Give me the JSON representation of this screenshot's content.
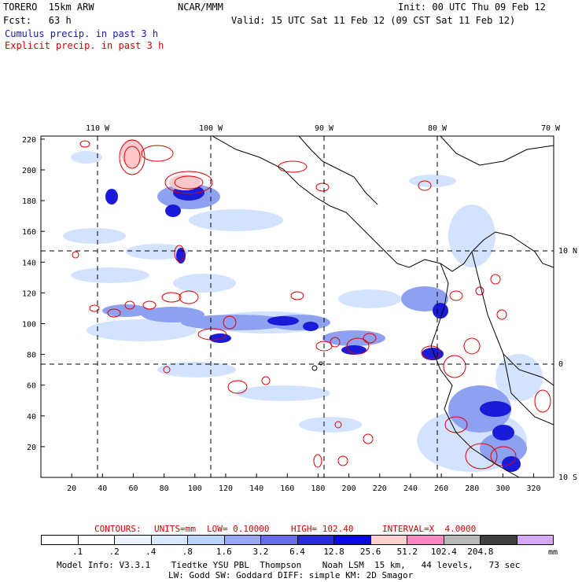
{
  "header": {
    "model": "TORERO  15km ARW",
    "org": "NCAR/MMM",
    "init": "Init: 00 UTC Thu 09 Feb 12",
    "fcst": "Fcst:   63 h",
    "valid": "Valid: 15 UTC Sat 11 Feb 12 (09 CST Sat 11 Feb 12)",
    "line_cumulus": "Cumulus precip. in past 3 h",
    "line_explicit": "Explicit precip. in past 3 h"
  },
  "map": {
    "lon_labels": [
      "110 W",
      "100 W",
      "90 W",
      "80 W",
      "70 W"
    ],
    "lat_labels": [
      "10 N",
      "0",
      "10 S"
    ],
    "x_ticks": [
      "20",
      "40",
      "60",
      "80",
      "100",
      "120",
      "140",
      "160",
      "180",
      "200",
      "220",
      "240",
      "260",
      "280",
      "300",
      "320"
    ],
    "y_ticks": [
      "20",
      "40",
      "60",
      "80",
      "100",
      "120",
      "140",
      "160",
      "180",
      "200",
      "220"
    ]
  },
  "contours": {
    "label": "CONTOURS:",
    "units": "UNITS=mm",
    "low": "LOW= 0.10000",
    "high": "HIGH= 102.40",
    "interval": "INTERVAL=X  4.0000"
  },
  "legend": {
    "labels": [
      ".1",
      ".2",
      ".4",
      ".8",
      "1.6",
      "3.2",
      "6.4",
      "12.8",
      "25.6",
      "51.2",
      "102.4",
      "204.8"
    ],
    "unit": "mm",
    "colors": [
      "#ffffff",
      "#ffffff",
      "#ebf3ff",
      "#d8e8ff",
      "#b8d4ff",
      "#9aa8f4",
      "#6a6cf0",
      "#2a2ad8",
      "#0a0ae0",
      "#ffd0d0",
      "#ff88c0",
      "#b8b8b8",
      "#404040",
      "#d8a8f8"
    ]
  },
  "footer": {
    "line1": "Model Info: V3.3.1    Tiedtke YSU PBL  Thompson    Noah LSM  15 km,   44 levels,   73 sec",
    "line2": "LW: Godd SW: Goddard DIFF: simple KM: 2D Smagor"
  }
}
